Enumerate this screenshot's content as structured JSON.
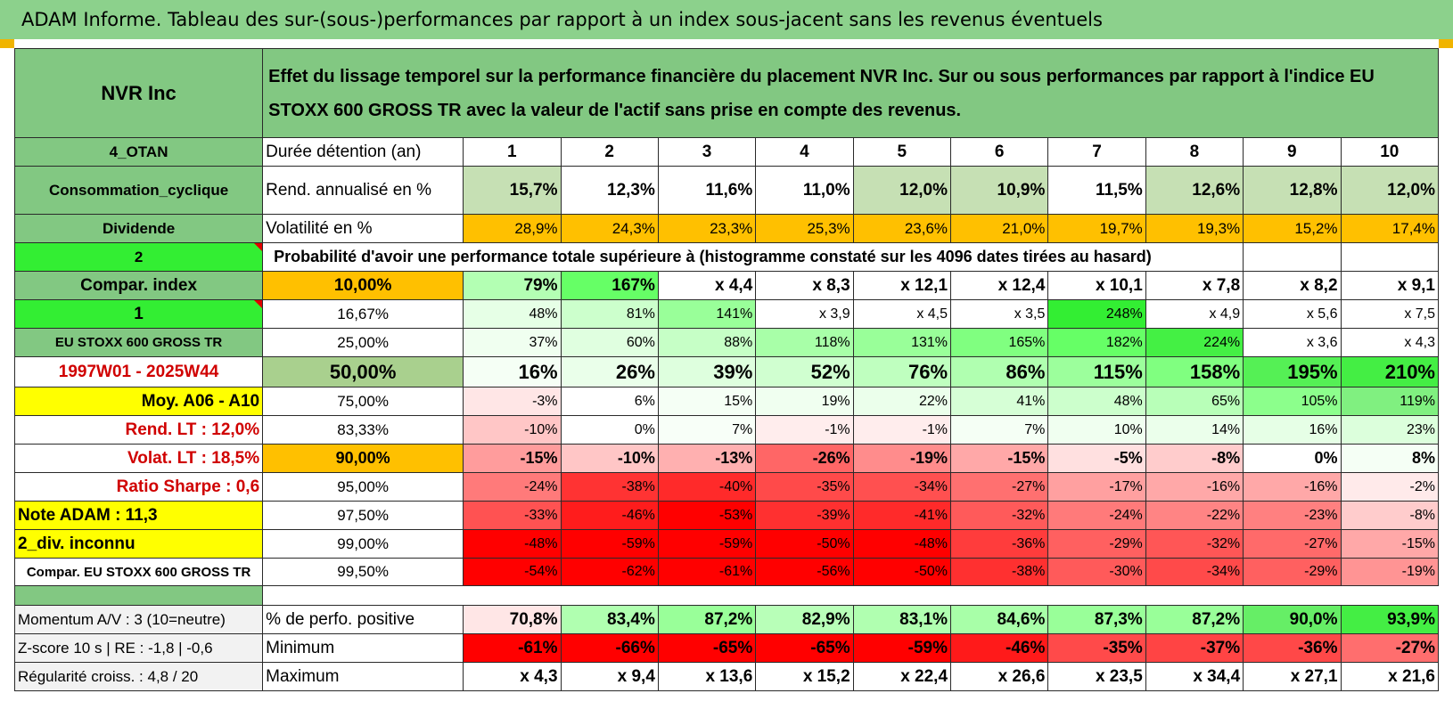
{
  "banner_title": "ADAM Informe. Tableau des sur-(sous-)performances par rapport à un index sous-jacent sans les revenus éventuels",
  "asset_name": "NVR Inc",
  "description": "Effet du lissage temporel sur la performance financière du placement NVR Inc. Sur ou sous performances par rapport à l'indice EU STOXX 600 GROSS TR avec la valeur de l'actif sans prise en compte des revenus.",
  "holding": {
    "side_label": "4_OTAN",
    "label": "Durée détention (an)",
    "years": [
      "1",
      "2",
      "3",
      "4",
      "5",
      "6",
      "7",
      "8",
      "9",
      "10"
    ]
  },
  "rend": {
    "side_label": "Consommation_cyclique",
    "label": "Rend. annualisé en %",
    "values": [
      "15,7%",
      "12,3%",
      "11,6%",
      "11,0%",
      "12,0%",
      "10,9%",
      "11,5%",
      "12,6%",
      "12,8%",
      "12,0%"
    ],
    "colors": [
      "#c6e0b4",
      "#ffffff",
      "#ffffff",
      "#ffffff",
      "#c6e0b4",
      "#c6e0b4",
      "#ffffff",
      "#c6e0b4",
      "#c6e0b4",
      "#c6e0b4"
    ]
  },
  "vol": {
    "side_label": "Dividende",
    "label": "Volatilité en %",
    "values": [
      "28,9%",
      "24,3%",
      "23,3%",
      "25,3%",
      "23,6%",
      "21,0%",
      "19,7%",
      "19,3%",
      "15,2%",
      "17,4%"
    ],
    "colors": [
      "#ffc000",
      "#ffc000",
      "#ffc000",
      "#ffc000",
      "#ffc000",
      "#ffc000",
      "#ffc000",
      "#ffc000",
      "#ffc000",
      "#ffc000"
    ]
  },
  "prob": {
    "side_label": "2",
    "label": "Probabilité d'avoir une performance totale supérieure à (histogramme constaté sur les 4096 dates tirées au hasard)"
  },
  "pct_rows": [
    {
      "side": "Compar. index",
      "side_bg": "#82c882",
      "side_color": "#000000",
      "side_align": "center",
      "side_bold": true,
      "pct": "10,00%",
      "pct_bg": "#ffc000",
      "bold": true,
      "size": 19,
      "values": [
        "79%",
        "167%",
        "x 4,4",
        "x 8,3",
        "x 12,1",
        "x 12,4",
        "x 10,1",
        "x 7,8",
        "x 8,2",
        "x 9,1"
      ],
      "colors": [
        "#b3ffb3",
        "#66ff66",
        "#ffffff",
        "#ffffff",
        "#ffffff",
        "#ffffff",
        "#ffffff",
        "#ffffff",
        "#ffffff",
        "#ffffff"
      ]
    },
    {
      "side": "1",
      "side_bg": "#33ee33",
      "side_color": "#000000",
      "side_align": "center",
      "side_bold": true,
      "tri": true,
      "pct": "16,67%",
      "pct_bg": "#ffffff",
      "bold": false,
      "size": 16,
      "values": [
        "48%",
        "81%",
        "141%",
        "x 3,9",
        "x 4,5",
        "x 3,5",
        "248%",
        "x 4,9",
        "x 5,6",
        "x 7,5"
      ],
      "colors": [
        "#e6ffe6",
        "#ccffcc",
        "#99ff99",
        "#ffffff",
        "#ffffff",
        "#ffffff",
        "#33ee33",
        "#ffffff",
        "#ffffff",
        "#ffffff"
      ]
    },
    {
      "side": "EU STOXX 600 GROSS TR",
      "side_bg": "#82c882",
      "side_color": "#000000",
      "side_align": "center",
      "side_bold": true,
      "side_size": 15,
      "pct": "25,00%",
      "pct_bg": "#ffffff",
      "bold": false,
      "size": 16,
      "values": [
        "37%",
        "60%",
        "88%",
        "118%",
        "131%",
        "165%",
        "182%",
        "224%",
        "x 3,6",
        "x 4,3"
      ],
      "colors": [
        "#f0fff0",
        "#e0ffe0",
        "#c6ffc6",
        "#a8ffa8",
        "#99ff99",
        "#80ff80",
        "#66ff66",
        "#44f044",
        "#ffffff",
        "#ffffff"
      ]
    },
    {
      "side": "1997W01 - 2025W44",
      "side_bg": "#ffffff",
      "side_color": "#d00000",
      "side_align": "center",
      "side_bold": true,
      "pct": "50,00%",
      "pct_bg": "#a9d08e",
      "bold": true,
      "size": 22,
      "values": [
        "16%",
        "26%",
        "39%",
        "52%",
        "76%",
        "86%",
        "115%",
        "158%",
        "195%",
        "210%"
      ],
      "colors": [
        "#f5fff5",
        "#eaffea",
        "#deffde",
        "#d0ffd0",
        "#bfffbf",
        "#b0ffb0",
        "#9cff9c",
        "#80ff80",
        "#55f055",
        "#44ee44"
      ]
    },
    {
      "side": "Moy. A06 - A10",
      "side_bg": "#ffff00",
      "side_color": "#000000",
      "side_align": "right",
      "side_bold": true,
      "pct": "75,00%",
      "pct_bg": "#ffffff",
      "bold": false,
      "size": 16,
      "values": [
        "-3%",
        "6%",
        "15%",
        "19%",
        "22%",
        "41%",
        "48%",
        "65%",
        "105%",
        "119%"
      ],
      "colors": [
        "#ffe6e6",
        "#ffffff",
        "#f5fff5",
        "#f0fff0",
        "#ebffeb",
        "#d6ffd6",
        "#ccffcc",
        "#b8ffb8",
        "#8cff8c",
        "#80f080"
      ]
    },
    {
      "side": "Rend. LT :    12,0%",
      "side_bg": "#ffffff",
      "side_color": "#d00000",
      "side_align": "right",
      "side_bold": true,
      "pct": "83,33%",
      "pct_bg": "#ffffff",
      "bold": false,
      "size": 16,
      "values": [
        "-10%",
        "0%",
        "7%",
        "-1%",
        "-1%",
        "7%",
        "10%",
        "14%",
        "16%",
        "23%"
      ],
      "colors": [
        "#ffc6c6",
        "#ffffff",
        "#f8fff8",
        "#ffeded",
        "#ffeded",
        "#f5fff5",
        "#f0fff0",
        "#ebffeb",
        "#e6ffe6",
        "#dcffdc"
      ]
    },
    {
      "side": "Volat. LT :    18,5%",
      "side_bg": "#ffffff",
      "side_color": "#d00000",
      "side_align": "right",
      "side_bold": true,
      "pct": "90,00%",
      "pct_bg": "#ffc000",
      "bold": true,
      "size": 18,
      "values": [
        "-15%",
        "-10%",
        "-13%",
        "-26%",
        "-19%",
        "-15%",
        "-5%",
        "-8%",
        "0%",
        "8%"
      ],
      "colors": [
        "#ff9c9c",
        "#ffc6c6",
        "#ffb0b0",
        "#ff6666",
        "#ff8c8c",
        "#ffa8a8",
        "#ffe0e0",
        "#ffcccc",
        "#ffffff",
        "#f5fff5"
      ]
    },
    {
      "side": "Ratio Sharpe :    0,6",
      "side_bg": "#ffffff",
      "side_color": "#d00000",
      "side_align": "right",
      "side_bold": true,
      "pct": "95,00%",
      "pct_bg": "#ffffff",
      "bold": false,
      "size": 16,
      "values": [
        "-24%",
        "-38%",
        "-40%",
        "-35%",
        "-34%",
        "-27%",
        "-17%",
        "-16%",
        "-16%",
        "-2%"
      ],
      "colors": [
        "#ff7a7a",
        "#ff3333",
        "#ff2a2a",
        "#ff4a4a",
        "#ff5050",
        "#ff7070",
        "#ffa0a0",
        "#ffa8a8",
        "#ffa8a8",
        "#ffeaea"
      ]
    },
    {
      "side": "Note ADAM : 11,3",
      "side_bg": "#ffff00",
      "side_color": "#000000",
      "side_align": "left",
      "side_bold": true,
      "pct": "97,50%",
      "pct_bg": "#ffffff",
      "bold": false,
      "size": 16,
      "values": [
        "-33%",
        "-46%",
        "-53%",
        "-39%",
        "-41%",
        "-32%",
        "-24%",
        "-22%",
        "-23%",
        "-8%"
      ],
      "colors": [
        "#ff5252",
        "#ff1c1c",
        "#ff0000",
        "#ff3030",
        "#ff2a2a",
        "#ff5a5a",
        "#ff7a7a",
        "#ff8484",
        "#ff8080",
        "#ffcccc"
      ]
    },
    {
      "side": "2_div. inconnu",
      "side_bg": "#ffff00",
      "side_color": "#000000",
      "side_align": "left",
      "side_bold": true,
      "pct": "99,00%",
      "pct_bg": "#ffffff",
      "bold": false,
      "size": 16,
      "values": [
        "-48%",
        "-59%",
        "-59%",
        "-50%",
        "-48%",
        "-36%",
        "-29%",
        "-32%",
        "-27%",
        "-15%"
      ],
      "colors": [
        "#ff0000",
        "#ff0000",
        "#ff0000",
        "#ff0000",
        "#ff0000",
        "#ff3c3c",
        "#ff6060",
        "#ff5656",
        "#ff6a6a",
        "#ffa8a8"
      ]
    },
    {
      "side": "Compar. EU STOXX 600 GROSS TR",
      "side_bg": "#ffffff",
      "side_color": "#000000",
      "side_align": "center",
      "side_bold": true,
      "side_size": 15,
      "pct": "99,50%",
      "pct_bg": "#ffffff",
      "bold": false,
      "size": 16,
      "values": [
        "-54%",
        "-62%",
        "-61%",
        "-56%",
        "-50%",
        "-38%",
        "-30%",
        "-34%",
        "-29%",
        "-19%"
      ],
      "colors": [
        "#ff0000",
        "#ff0000",
        "#ff0000",
        "#ff0000",
        "#ff0000",
        "#ff3030",
        "#ff5a5a",
        "#ff4a4a",
        "#ff6060",
        "#ff9494"
      ]
    }
  ],
  "stats": [
    {
      "side": "Momentum A/V : 3 (10=neutre)",
      "label": "% de perfo. positive",
      "values": [
        "70,8%",
        "83,4%",
        "87,2%",
        "82,9%",
        "83,1%",
        "84,6%",
        "87,3%",
        "87,2%",
        "90,0%",
        "93,9%"
      ],
      "colors": [
        "#ffe6e6",
        "#b0ffb0",
        "#99ff99",
        "#b8ffb8",
        "#b0ffb0",
        "#a8ffa8",
        "#99ff99",
        "#99ff99",
        "#66ee66",
        "#44ee44"
      ]
    },
    {
      "side": "Z-score 10 s | RE : -1,8 | -0,6",
      "label": "Minimum",
      "values": [
        "-61%",
        "-66%",
        "-65%",
        "-65%",
        "-59%",
        "-46%",
        "-35%",
        "-37%",
        "-36%",
        "-27%"
      ],
      "colors": [
        "#ff0000",
        "#ff0000",
        "#ff0000",
        "#ff0000",
        "#ff0000",
        "#ff1a1a",
        "#ff4a4a",
        "#ff4444",
        "#ff4848",
        "#ff6e6e"
      ]
    },
    {
      "side": "Régularité croiss. : 4,8 / 20",
      "label": "Maximum",
      "values": [
        "x 4,3",
        "x 9,4",
        "x 13,6",
        "x 15,2",
        "x 22,4",
        "x 26,6",
        "x 23,5",
        "x 34,4",
        "x 27,1",
        "x 21,6"
      ],
      "colors": [
        "#ffffff",
        "#ffffff",
        "#ffffff",
        "#ffffff",
        "#ffffff",
        "#ffffff",
        "#ffffff",
        "#ffffff",
        "#ffffff",
        "#ffffff"
      ]
    }
  ]
}
